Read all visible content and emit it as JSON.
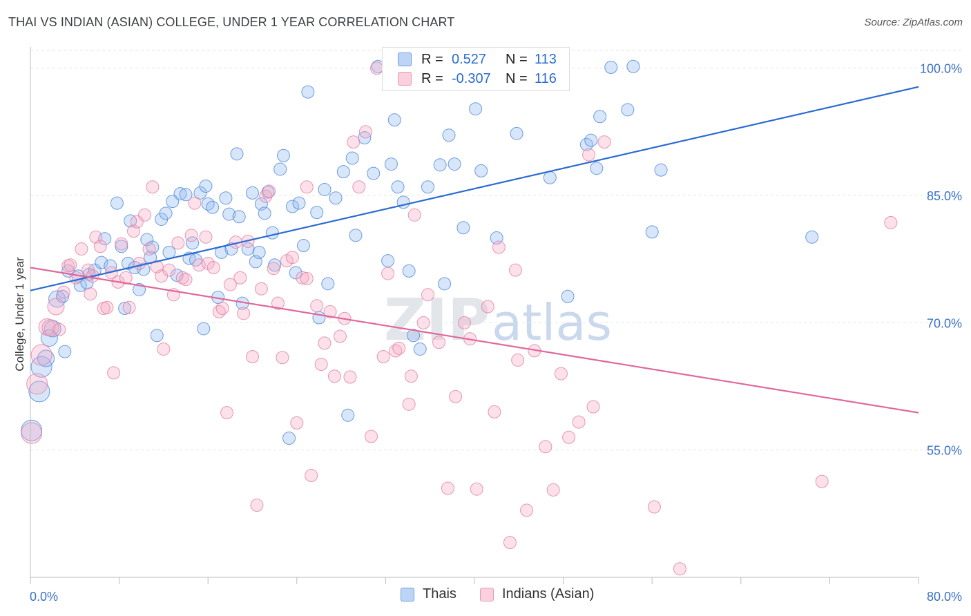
{
  "title": "THAI VS INDIAN (ASIAN) COLLEGE, UNDER 1 YEAR CORRELATION CHART",
  "source": "Source: ZipAtlas.com",
  "watermark": {
    "zip": "ZIP",
    "atlas": "atlas"
  },
  "legend_top": [
    {
      "r_label": "R =",
      "r_value": "0.527",
      "n_label": "N =",
      "n_value": "113",
      "color": "#8fb8f0"
    },
    {
      "r_label": "R =",
      "r_value": "-0.307",
      "n_label": "N =",
      "n_value": "116",
      "color": "#f5a9c2"
    }
  ],
  "legend_bottom": [
    {
      "label": "Thais",
      "color": "#8fb8f0"
    },
    {
      "label": "Indians (Asian)",
      "color": "#f5a9c2"
    }
  ],
  "chart_data": {
    "type": "scatter",
    "title": "THAI VS INDIAN (ASIAN) COLLEGE, UNDER 1 YEAR CORRELATION CHART",
    "xlabel": "",
    "ylabel": "College, Under 1 year",
    "xlim": [
      0,
      80
    ],
    "ylim": [
      40,
      102.5
    ],
    "x_tick_labels": [
      "0.0%",
      "80.0%"
    ],
    "y_ticks": [
      55,
      70,
      85,
      100
    ],
    "y_tick_labels": [
      "55.0%",
      "70.0%",
      "85.0%",
      "100.0%"
    ],
    "grid": "horizontal dashed",
    "legend": "top-center and bottom",
    "series": [
      {
        "name": "Thais",
        "color": "#8fb8f0",
        "stroke": "#4a86d8",
        "trend": {
          "x": [
            0,
            80
          ],
          "y": [
            73.8,
            97.8
          ],
          "color": "#2a6bd1"
        },
        "points": [
          [
            0.1,
            57.3
          ],
          [
            1.0,
            64.8
          ],
          [
            0.8,
            61.9
          ],
          [
            1.4,
            65.8
          ],
          [
            1.7,
            68.2
          ],
          [
            2.0,
            69.3
          ],
          [
            2.4,
            72.8
          ],
          [
            3.1,
            66.6
          ],
          [
            2.9,
            73.1
          ],
          [
            3.4,
            76.1
          ],
          [
            4.3,
            75.5
          ],
          [
            4.5,
            74.4
          ],
          [
            5.3,
            75.7
          ],
          [
            5.1,
            74.7
          ],
          [
            5.8,
            76.2
          ],
          [
            6.4,
            77.1
          ],
          [
            6.7,
            79.9
          ],
          [
            7.2,
            76.7
          ],
          [
            7.8,
            84.1
          ],
          [
            8.5,
            71.7
          ],
          [
            8.2,
            79.0
          ],
          [
            8.8,
            77.0
          ],
          [
            9.0,
            82.0
          ],
          [
            9.4,
            76.5
          ],
          [
            9.8,
            73.9
          ],
          [
            10.2,
            76.3
          ],
          [
            10.5,
            79.8
          ],
          [
            10.8,
            77.7
          ],
          [
            11.0,
            78.9
          ],
          [
            11.8,
            82.2
          ],
          [
            12.2,
            82.9
          ],
          [
            12.5,
            78.3
          ],
          [
            12.8,
            84.3
          ],
          [
            13.2,
            75.6
          ],
          [
            13.5,
            85.2
          ],
          [
            14.0,
            85.1
          ],
          [
            14.3,
            77.6
          ],
          [
            14.6,
            79.4
          ],
          [
            14.9,
            77.4
          ],
          [
            15.3,
            85.3
          ],
          [
            15.6,
            69.3
          ],
          [
            15.8,
            86.1
          ],
          [
            16.0,
            84.0
          ],
          [
            16.4,
            83.6
          ],
          [
            16.9,
            73.0
          ],
          [
            17.2,
            78.3
          ],
          [
            17.6,
            84.7
          ],
          [
            17.9,
            82.8
          ],
          [
            18.1,
            78.7
          ],
          [
            18.6,
            89.9
          ],
          [
            18.8,
            82.5
          ],
          [
            19.1,
            72.3
          ],
          [
            19.6,
            78.7
          ],
          [
            20.0,
            85.3
          ],
          [
            20.3,
            77.2
          ],
          [
            20.6,
            78.3
          ],
          [
            20.8,
            84.0
          ],
          [
            21.1,
            82.9
          ],
          [
            21.4,
            85.4
          ],
          [
            21.8,
            80.6
          ],
          [
            22.0,
            76.8
          ],
          [
            22.5,
            88.1
          ],
          [
            22.8,
            89.7
          ],
          [
            23.3,
            56.4
          ],
          [
            23.6,
            83.7
          ],
          [
            23.9,
            75.9
          ],
          [
            24.2,
            84.1
          ],
          [
            24.6,
            79.1
          ],
          [
            25.0,
            97.2
          ],
          [
            25.8,
            83.0
          ],
          [
            26.0,
            70.6
          ],
          [
            26.5,
            85.7
          ],
          [
            26.8,
            74.6
          ],
          [
            27.5,
            84.7
          ],
          [
            28.2,
            87.8
          ],
          [
            28.6,
            59.1
          ],
          [
            29.0,
            89.4
          ],
          [
            29.3,
            80.3
          ],
          [
            30.1,
            91.8
          ],
          [
            30.9,
            87.6
          ],
          [
            31.3,
            100.2
          ],
          [
            32.2,
            77.3
          ],
          [
            32.5,
            88.7
          ],
          [
            32.8,
            93.9
          ],
          [
            33.1,
            86.0
          ],
          [
            33.6,
            84.2
          ],
          [
            34.1,
            76.1
          ],
          [
            34.5,
            68.5
          ],
          [
            35.1,
            66.9
          ],
          [
            35.8,
            86.0
          ],
          [
            36.9,
            88.6
          ],
          [
            37.3,
            74.6
          ],
          [
            37.7,
            92.1
          ],
          [
            38.2,
            88.7
          ],
          [
            39.0,
            81.2
          ],
          [
            40.1,
            95.2
          ],
          [
            40.6,
            87.9
          ],
          [
            42.0,
            80.0
          ],
          [
            43.8,
            92.3
          ],
          [
            45.0,
            100.3
          ],
          [
            46.8,
            87.1
          ],
          [
            48.4,
            73.1
          ],
          [
            50.1,
            91.0
          ],
          [
            50.5,
            91.5
          ],
          [
            51.0,
            88.2
          ],
          [
            51.3,
            94.3
          ],
          [
            52.3,
            100.1
          ],
          [
            53.8,
            95.1
          ],
          [
            54.3,
            100.2
          ],
          [
            56.0,
            80.7
          ],
          [
            56.8,
            88.0
          ],
          [
            70.4,
            80.1
          ],
          [
            11.4,
            68.5
          ]
        ]
      },
      {
        "name": "Indians (Asian)",
        "color": "#f5a9c2",
        "stroke": "#e07ea2",
        "trend": {
          "x": [
            0,
            80
          ],
          "y": [
            76.5,
            59.4
          ],
          "color": "#e0679a"
        },
        "points": [
          [
            0.1,
            57.0
          ],
          [
            0.6,
            62.8
          ],
          [
            1.0,
            66.2
          ],
          [
            1.5,
            69.5
          ],
          [
            1.8,
            69.4
          ],
          [
            2.3,
            71.9
          ],
          [
            2.6,
            69.2
          ],
          [
            3.0,
            73.6
          ],
          [
            3.4,
            76.7
          ],
          [
            3.6,
            76.8
          ],
          [
            4.1,
            75.3
          ],
          [
            4.6,
            78.7
          ],
          [
            5.2,
            76.2
          ],
          [
            5.4,
            73.4
          ],
          [
            5.6,
            75.5
          ],
          [
            5.9,
            80.1
          ],
          [
            6.3,
            79.0
          ],
          [
            6.6,
            71.7
          ],
          [
            6.9,
            71.8
          ],
          [
            7.3,
            75.9
          ],
          [
            7.5,
            64.1
          ],
          [
            7.9,
            74.8
          ],
          [
            8.2,
            79.3
          ],
          [
            8.6,
            75.3
          ],
          [
            8.9,
            71.8
          ],
          [
            9.3,
            80.8
          ],
          [
            9.6,
            81.9
          ],
          [
            9.8,
            77.0
          ],
          [
            10.3,
            82.7
          ],
          [
            10.7,
            78.7
          ],
          [
            11.0,
            86.0
          ],
          [
            11.4,
            76.6
          ],
          [
            11.8,
            75.5
          ],
          [
            12.0,
            66.9
          ],
          [
            12.5,
            76.2
          ],
          [
            12.9,
            73.3
          ],
          [
            13.3,
            79.4
          ],
          [
            13.7,
            75.3
          ],
          [
            14.0,
            75.1
          ],
          [
            14.5,
            80.3
          ],
          [
            14.8,
            84.1
          ],
          [
            15.2,
            76.8
          ],
          [
            15.8,
            80.1
          ],
          [
            16.0,
            77.0
          ],
          [
            16.5,
            76.5
          ],
          [
            17.0,
            71.3
          ],
          [
            17.3,
            71.7
          ],
          [
            17.7,
            59.4
          ],
          [
            18.0,
            74.5
          ],
          [
            18.5,
            79.5
          ],
          [
            18.9,
            75.3
          ],
          [
            19.2,
            71.1
          ],
          [
            19.6,
            79.6
          ],
          [
            20.0,
            66.0
          ],
          [
            20.4,
            48.5
          ],
          [
            20.8,
            74.0
          ],
          [
            21.2,
            84.9
          ],
          [
            21.5,
            85.5
          ],
          [
            21.9,
            76.4
          ],
          [
            22.3,
            72.3
          ],
          [
            22.7,
            65.9
          ],
          [
            23.1,
            77.3
          ],
          [
            23.6,
            77.7
          ],
          [
            24.0,
            58.2
          ],
          [
            24.5,
            75.3
          ],
          [
            24.9,
            86.0
          ],
          [
            25.3,
            52.0
          ],
          [
            25.8,
            72.0
          ],
          [
            26.2,
            65.1
          ],
          [
            26.5,
            67.6
          ],
          [
            27.0,
            71.3
          ],
          [
            27.4,
            63.7
          ],
          [
            27.9,
            68.4
          ],
          [
            28.3,
            70.5
          ],
          [
            28.8,
            63.6
          ],
          [
            29.1,
            91.3
          ],
          [
            29.6,
            86.0
          ],
          [
            30.2,
            92.5
          ],
          [
            30.7,
            56.6
          ],
          [
            31.2,
            100.0
          ],
          [
            31.8,
            66.0
          ],
          [
            32.2,
            75.8
          ],
          [
            32.9,
            66.7
          ],
          [
            33.2,
            67.0
          ],
          [
            34.1,
            60.4
          ],
          [
            34.3,
            63.7
          ],
          [
            34.6,
            82.7
          ],
          [
            35.4,
            70.0
          ],
          [
            35.8,
            73.3
          ],
          [
            36.8,
            67.7
          ],
          [
            37.6,
            50.5
          ],
          [
            38.3,
            61.3
          ],
          [
            39.1,
            70.0
          ],
          [
            39.6,
            68.1
          ],
          [
            40.2,
            50.4
          ],
          [
            41.2,
            71.9
          ],
          [
            41.8,
            59.5
          ],
          [
            42.2,
            78.9
          ],
          [
            43.2,
            44.1
          ],
          [
            43.9,
            65.6
          ],
          [
            44.7,
            47.9
          ],
          [
            45.4,
            66.7
          ],
          [
            46.4,
            55.4
          ],
          [
            47.1,
            50.3
          ],
          [
            47.8,
            64.0
          ],
          [
            48.5,
            56.5
          ],
          [
            49.4,
            58.3
          ],
          [
            50.3,
            89.8
          ],
          [
            50.7,
            60.1
          ],
          [
            51.7,
            91.3
          ],
          [
            56.2,
            48.3
          ],
          [
            58.5,
            41.0
          ],
          [
            71.3,
            51.3
          ],
          [
            77.5,
            81.8
          ],
          [
            43.7,
            76.2
          ],
          [
            24.9,
            75.2
          ]
        ]
      }
    ]
  }
}
